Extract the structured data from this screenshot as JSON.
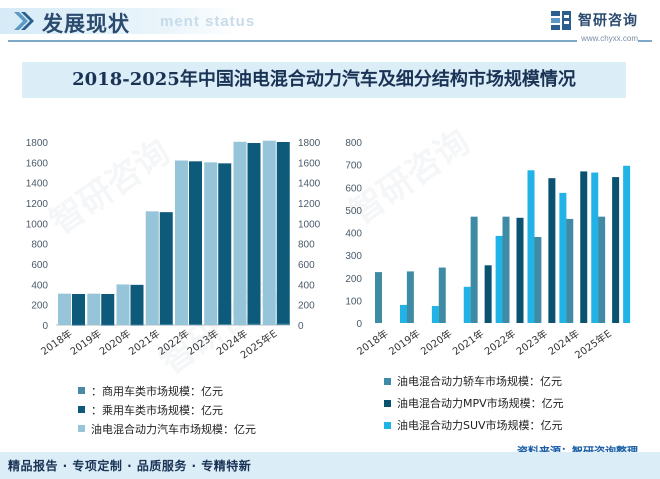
{
  "header": {
    "title": "发展现状",
    "ghost_text": "ment status",
    "brand_name": "智研咨询",
    "brand_url": "www.chyxx.com"
  },
  "main_title": "2018-2025年中国油电混合动力汽车及细分结构市场规模情况",
  "colors": {
    "commercial": "#4a8aa8",
    "passenger": "#0d5a7a",
    "total": "#96c4d8",
    "sedan": "#3f8ba6",
    "mpv": "#0a5270",
    "suv": "#21b2e6"
  },
  "chart_data": [
    {
      "type": "bar",
      "categories": [
        "2018年",
        "2019年",
        "2020年",
        "2021年",
        "2022年",
        "2023年",
        "2024年",
        "2025年E"
      ],
      "series": [
        {
          "name": "：商用车类市场规模：亿元",
          "values": [
            3,
            3,
            4,
            8,
            8,
            10,
            12,
            13
          ]
        },
        {
          "name": "：乘用车类市场规模：亿元",
          "values": [
            305,
            305,
            395,
            1110,
            1610,
            1590,
            1790,
            1800
          ]
        },
        {
          "name": "油电混合动力汽车市场规模：亿元",
          "values": [
            308,
            308,
            399,
            1118,
            1618,
            1600,
            1802,
            1813
          ]
        }
      ],
      "ylim": [
        0,
        1800
      ],
      "yticks": [
        "0",
        "200",
        "400",
        "600",
        "800",
        "1000",
        "1200",
        "1400",
        "1600",
        "1800"
      ]
    },
    {
      "type": "bar",
      "categories": [
        "2018年",
        "2019年",
        "2020年",
        "2021年",
        "2022年",
        "2023年",
        "2024年",
        "2025年E"
      ],
      "series": [
        {
          "name": "油电混合动力轿车市场规模：亿元",
          "values": [
            225,
            228,
            245,
            470,
            470,
            380,
            460,
            470
          ]
        },
        {
          "name": "油电混合动力MPV市场规模：亿元",
          "values": [
            0,
            0,
            0,
            255,
            465,
            640,
            670,
            645
          ]
        },
        {
          "name": "油电混合动力SUV市场规模：亿元",
          "values": [
            80,
            75,
            160,
            385,
            675,
            575,
            665,
            695
          ]
        }
      ],
      "ylim": [
        0,
        800
      ],
      "yticks": [
        "0",
        "100",
        "200",
        "300",
        "400",
        "500",
        "600",
        "700",
        "800"
      ]
    }
  ],
  "footer": {
    "source": "资料来源：智研咨询整理",
    "services": "精品报告 · 专项定制 · 品质服务 · 专精特新"
  }
}
